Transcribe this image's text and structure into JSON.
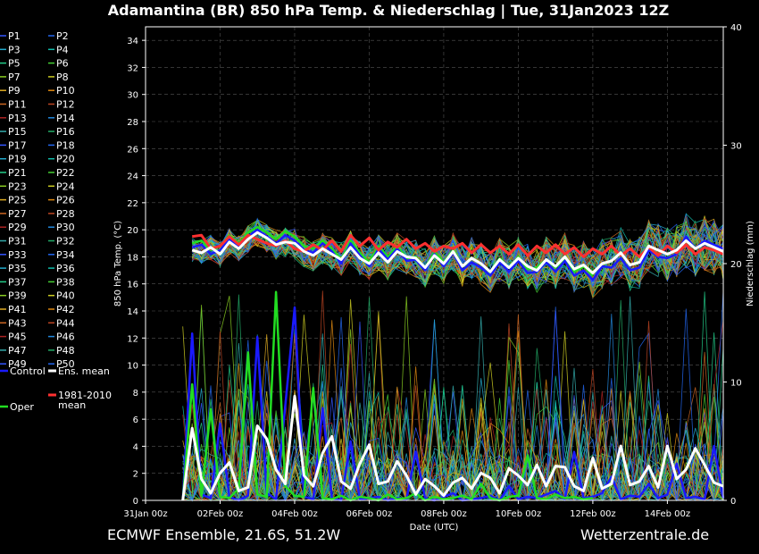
{
  "chart_data": {
    "type": "line",
    "title": "Adamantina  (BR)  850 hPa Temp. & Niederschlag | Tue, 31Jan2023 12Z",
    "xlabel": "Date (UTC)",
    "ylabel_left": "850 hPa Temp. (°C)",
    "ylabel_right": "Niederschlag (mm)",
    "x_ticks": [
      "31Jan 00z",
      "02Feb 00z",
      "04Feb 00z",
      "06Feb 00z",
      "08Feb 00z",
      "10Feb 00z",
      "12Feb 00z",
      "14Feb 00z"
    ],
    "ylim_left": [
      0,
      35
    ],
    "y_ticks_left": [
      0,
      2,
      4,
      6,
      8,
      10,
      12,
      14,
      16,
      18,
      20,
      22,
      24,
      26,
      28,
      30,
      32,
      34
    ],
    "ylim_right": [
      0,
      40
    ],
    "y_ticks_right": [
      0,
      10,
      20,
      30,
      40
    ],
    "x_range_days": [
      0,
      15.5
    ],
    "grid": true,
    "legend_placement": "left",
    "legend": {
      "members": [
        "P1",
        "P2",
        "P3",
        "P4",
        "P5",
        "P6",
        "P7",
        "P8",
        "P9",
        "P10",
        "P11",
        "P12",
        "P13",
        "P14",
        "P15",
        "P16",
        "P17",
        "P18",
        "P19",
        "P20",
        "P21",
        "P22",
        "P23",
        "P24",
        "P25",
        "P26",
        "P27",
        "P28",
        "P29",
        "P30",
        "P31",
        "P32",
        "P33",
        "P34",
        "P35",
        "P36",
        "P37",
        "P38",
        "P39",
        "P40",
        "P41",
        "P42",
        "P43",
        "P44",
        "P45",
        "P46",
        "P47",
        "P48",
        "P49",
        "P50"
      ],
      "control": "Control",
      "ens_mean": "Ens. mean",
      "climate": "1981-2010",
      "climate_2": "mean",
      "oper": "Oper"
    },
    "colors": {
      "control": "#1a1aff",
      "oper": "#22dd22",
      "ens_mean": "#ffffff",
      "climate": "#ff3030",
      "members": [
        "#3355ff",
        "#2266ee",
        "#22aacc",
        "#11bbaa",
        "#22cc88",
        "#44cc33",
        "#88cc22",
        "#cccc22",
        "#ddaa22",
        "#dd8811",
        "#cc6622",
        "#bb4422",
        "#aa2222",
        "#2288dd",
        "#33aaaa",
        "#22aa66"
      ]
    },
    "series": [
      {
        "name": "Ens. mean",
        "axis": "temp",
        "x": [
          1.25,
          1.5,
          1.75,
          2,
          2.25,
          2.5,
          2.75,
          3,
          3.25,
          3.5,
          3.75,
          4,
          4.25,
          4.5,
          4.75,
          5,
          5.25,
          5.5,
          5.75,
          6,
          6.25,
          6.5,
          6.75,
          7,
          7.25,
          7.5,
          7.75,
          8,
          8.25,
          8.5,
          8.75,
          9,
          9.25,
          9.5,
          9.75,
          10,
          10.25,
          10.5,
          10.75,
          11,
          11.25,
          11.5,
          11.75,
          12,
          12.25,
          12.5,
          12.75,
          13,
          13.25,
          13.5,
          13.75,
          14,
          14.25,
          14.5,
          14.75,
          15,
          15.25,
          15.5
        ],
        "values": [
          18.5,
          18.3,
          18.7,
          18.2,
          19.1,
          18.6,
          19.3,
          19.8,
          19.4,
          18.9,
          19.1,
          19.0,
          18.4,
          18.1,
          18.6,
          18.2,
          17.8,
          18.7,
          17.9,
          17.5,
          18.3,
          17.6,
          18.4,
          18.0,
          17.9,
          17.2,
          18.1,
          17.5,
          18.4,
          17.3,
          17.9,
          17.5,
          16.9,
          17.8,
          17.2,
          17.9,
          17.3,
          17.0,
          17.8,
          17.3,
          18.0,
          17.1,
          17.4,
          16.8,
          17.5,
          17.7,
          18.3,
          17.4,
          17.6,
          18.8,
          18.5,
          18.2,
          18.5,
          19.2,
          18.6,
          19.0,
          18.7,
          18.4
        ]
      },
      {
        "name": "1981-2010 mean",
        "axis": "temp",
        "x": [
          1.25,
          1.5,
          1.75,
          2,
          2.25,
          2.5,
          2.75,
          3,
          3.25,
          3.5,
          3.75,
          4,
          4.25,
          4.5,
          4.75,
          5,
          5.25,
          5.5,
          5.75,
          6,
          6.25,
          6.5,
          6.75,
          7,
          7.25,
          7.5,
          7.75,
          8,
          8.25,
          8.5,
          8.75,
          9,
          9.25,
          9.5,
          9.75,
          10,
          10.25,
          10.5,
          10.75,
          11,
          11.25,
          11.5,
          11.75,
          12,
          12.25,
          12.5,
          12.75,
          13,
          13.25,
          13.5,
          13.75,
          14,
          14.25,
          14.5,
          14.75,
          15,
          15.25,
          15.5
        ],
        "values": [
          19.5,
          19.6,
          18.6,
          18.8,
          19.5,
          18.9,
          19.6,
          19.3,
          19.0,
          18.8,
          19.2,
          18.6,
          18.4,
          18.9,
          18.5,
          19.2,
          18.4,
          19.6,
          18.8,
          19.4,
          18.5,
          19.1,
          18.7,
          19.3,
          18.6,
          19.0,
          18.4,
          18.8,
          18.6,
          19.0,
          18.3,
          18.9,
          18.3,
          18.8,
          18.2,
          18.9,
          18.1,
          18.8,
          18.3,
          18.9,
          18.2,
          18.7,
          18.0,
          18.6,
          18.2,
          18.8,
          18.1,
          18.6,
          18.0,
          18.7,
          18.1,
          18.8,
          18.3,
          18.9,
          18.2,
          18.7,
          18.5,
          18.2
        ]
      },
      {
        "name": "Control",
        "axis": "temp",
        "x": [
          1.25,
          1.5,
          1.75,
          2,
          2.25,
          2.5,
          2.75,
          3,
          3.25,
          3.5,
          3.75,
          4,
          4.25,
          4.5,
          4.75,
          5,
          5.25,
          5.5,
          5.75,
          6,
          6.25,
          6.5,
          6.75,
          7,
          7.25,
          7.5,
          7.75,
          8,
          8.25,
          8.5,
          8.75,
          9,
          9.25,
          9.5,
          9.75,
          10,
          10.25,
          10.5,
          10.75,
          11,
          11.25,
          11.5,
          11.75,
          12,
          12.25,
          12.5,
          12.75,
          13,
          13.25,
          13.5,
          13.75,
          14,
          14.25,
          14.5,
          14.75,
          15,
          15.25,
          15.5
        ],
        "values": [
          18.7,
          18.9,
          18.2,
          18.5,
          19.3,
          18.7,
          19.5,
          20.0,
          19.5,
          19.0,
          19.6,
          19.2,
          18.5,
          18.3,
          19.0,
          18.4,
          17.5,
          19.0,
          18.1,
          17.3,
          18.6,
          17.8,
          18.6,
          17.7,
          17.8,
          17.0,
          18.2,
          17.3,
          18.3,
          17.0,
          17.6,
          17.2,
          16.6,
          17.6,
          16.9,
          17.7,
          16.8,
          16.9,
          17.6,
          16.9,
          17.7,
          16.6,
          17.0,
          16.3,
          17.3,
          17.2,
          17.9,
          17.0,
          17.2,
          18.5,
          18.0,
          17.9,
          18.2,
          19.5,
          18.6,
          19.2,
          18.9,
          18.6
        ]
      },
      {
        "name": "Oper",
        "axis": "temp",
        "x": [
          1.25,
          1.5,
          1.75,
          2,
          2.25,
          2.5,
          2.75,
          3,
          3.25,
          3.5,
          3.75,
          4,
          4.25,
          4.5,
          4.75,
          5,
          5.25,
          5.5,
          5.75,
          6,
          6.25,
          6.5,
          6.75,
          7,
          7.25,
          7.5,
          7.75,
          8,
          8.25,
          8.5,
          8.75,
          9,
          9.25,
          9.5,
          9.75,
          10,
          10.25,
          10.5,
          10.75,
          11,
          11.25,
          11.5,
          11.75,
          12
        ],
        "values": [
          19.0,
          19.2,
          18.5,
          18.8,
          19.6,
          19.0,
          19.8,
          20.2,
          19.8,
          19.3,
          19.9,
          19.5,
          18.8,
          18.6,
          19.2,
          18.6,
          17.8,
          19.2,
          18.3,
          17.6,
          18.8,
          18.0,
          18.8,
          17.9,
          18.0,
          17.2,
          18.4,
          17.6,
          18.5,
          17.3,
          17.9,
          17.5,
          16.9,
          17.9,
          17.2,
          18.0,
          17.1,
          17.2,
          17.8,
          17.2,
          17.9,
          16.9,
          17.3,
          16.6
        ]
      },
      {
        "name": "Ens. mean",
        "axis": "precip",
        "x": [
          1.0,
          1.25,
          1.5,
          1.75,
          2.0,
          2.25,
          2.5,
          2.75,
          3.0,
          3.25,
          3.5,
          3.75,
          4.0,
          4.25,
          4.5,
          4.75,
          5.0,
          5.25,
          5.5,
          5.75,
          6.0,
          6.25,
          6.5,
          6.75,
          7.0,
          7.25,
          7.5,
          7.75,
          8.0,
          8.25,
          8.5,
          8.75,
          9.0,
          9.25,
          9.5,
          9.75,
          10.0,
          10.25,
          10.5,
          10.75,
          11.0,
          11.25,
          11.5,
          11.75,
          12.0,
          12.25,
          12.5,
          12.75,
          13.0,
          13.25,
          13.5,
          13.75,
          14.0,
          14.25,
          14.5,
          14.75,
          15.0,
          15.25,
          15.5
        ],
        "values": [
          0,
          6.1,
          1.8,
          0.6,
          2.3,
          3.2,
          0.8,
          1.1,
          6.3,
          5.2,
          2.6,
          1.4,
          8.8,
          2.1,
          1.2,
          4.0,
          5.4,
          1.6,
          1.0,
          3.1,
          4.7,
          1.4,
          1.6,
          3.3,
          2.1,
          0.5,
          1.8,
          1.2,
          0.4,
          1.5,
          1.9,
          1.0,
          2.3,
          1.9,
          0.6,
          2.7,
          2.1,
          1.3,
          3.0,
          1.2,
          2.9,
          2.8,
          1.2,
          0.8,
          3.6,
          1.0,
          1.4,
          4.6,
          1.3,
          1.6,
          2.9,
          1.1,
          4.6,
          1.8,
          2.6,
          4.4,
          3.0,
          1.5,
          1.2
        ]
      },
      {
        "name": "Control",
        "axis": "precip",
        "x": [
          1.0,
          1.25,
          1.5,
          1.75,
          2.0,
          2.25,
          2.5,
          2.75,
          3.0,
          3.25,
          3.5,
          3.75,
          4.0,
          4.25,
          4.5,
          4.75,
          5.0,
          5.25,
          5.5,
          5.75,
          6.0,
          6.25,
          6.5,
          6.75,
          7.0,
          7.25,
          7.5,
          7.75,
          8.0,
          8.25,
          8.5,
          8.75,
          9.0,
          9.25,
          9.5,
          9.75,
          10.0,
          10.25,
          10.5,
          10.75,
          11.0,
          11.25,
          11.5,
          11.75,
          12.0,
          12.25,
          12.5,
          12.75,
          13.0,
          13.25,
          13.5,
          13.75,
          14.0,
          14.25,
          14.5,
          14.75,
          15.0,
          15.25,
          15.5
        ],
        "values": [
          0,
          14.1,
          0.5,
          0.2,
          6.5,
          0.3,
          0,
          0.4,
          13.8,
          0.6,
          0.1,
          8.0,
          16.3,
          0.3,
          0.1,
          7.8,
          0.2,
          0,
          5.0,
          0.1,
          0.2,
          0.3,
          0,
          0.2,
          0.1,
          4.1,
          0.2,
          0,
          0.3,
          0.6,
          0,
          0.1,
          0.2,
          0.4,
          0,
          1.2,
          0.1,
          0.3,
          0.2,
          0.5,
          0.8,
          0.1,
          4.1,
          0.2,
          0.3,
          0.6,
          2.0,
          0.1,
          0.4,
          0.3,
          1.4,
          0.2,
          0.5,
          3.1,
          0.2,
          0.3,
          0.1,
          4.6,
          0.2
        ]
      },
      {
        "name": "Oper",
        "axis": "precip",
        "x": [
          1.0,
          1.25,
          1.5,
          1.75,
          2.0,
          2.25,
          2.5,
          2.75,
          3.0,
          3.25,
          3.5,
          3.75,
          4.0,
          4.25,
          4.5,
          4.75,
          5.0,
          5.25,
          5.5,
          5.75,
          6.0,
          6.25,
          6.5,
          6.75,
          7.0,
          7.25,
          7.5,
          7.75,
          8.0,
          8.25,
          8.5,
          8.75,
          9.0,
          9.25,
          9.5,
          9.75,
          10.0,
          10.25,
          10.5,
          10.75,
          11.0,
          11.25,
          11.5,
          11.75,
          12.0
        ],
        "values": [
          0,
          9.8,
          0.4,
          7.7,
          0.3,
          0.2,
          1.0,
          12.5,
          0.5,
          0.3,
          17.6,
          1.2,
          0.4,
          0.3,
          9.5,
          0.2,
          0.1,
          0.4,
          0,
          0.3,
          0.2,
          0,
          0.5,
          0.1,
          0.2,
          0.6,
          0,
          0.3,
          0.1,
          0.2,
          0.4,
          0.1,
          1.4,
          0.2,
          0,
          0.3,
          0.4,
          3.8,
          0.2,
          0.1,
          0.5,
          0.2,
          0.3,
          0.1,
          0.2
        ]
      }
    ],
    "members_note_values_are_illustrative": false
  },
  "footer": {
    "left": "ECMWF Ensemble, 21.6S, 51.2W",
    "right": "Wetterzentrale.de"
  }
}
